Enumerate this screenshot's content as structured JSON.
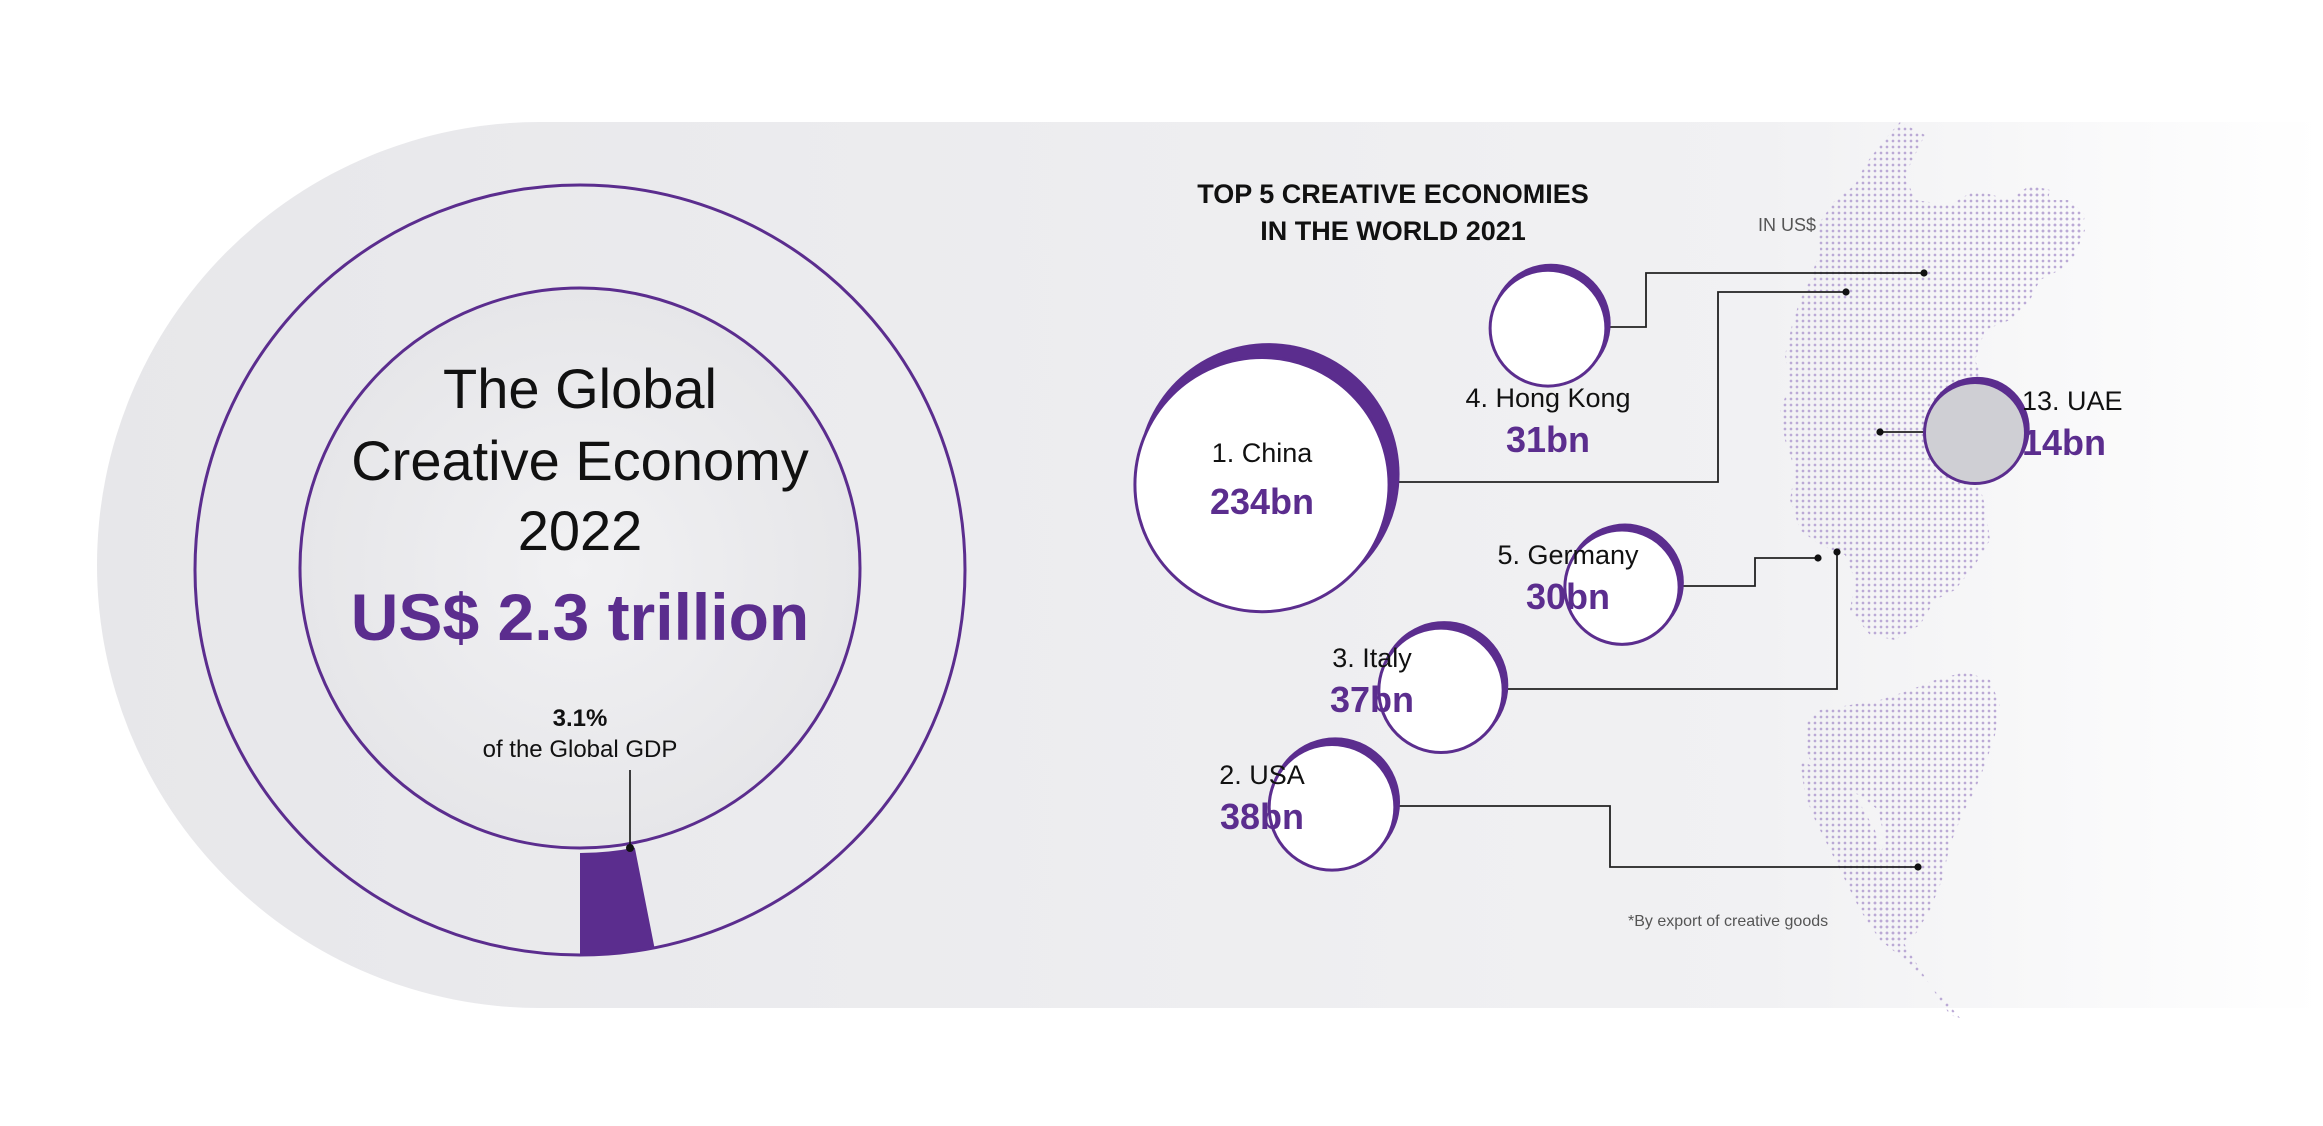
{
  "colors": {
    "accent": "#5b2d8e",
    "background_band": "#e9e9ec",
    "map_dots": "#b8a6d4",
    "uae_fill": "#cfcfd4"
  },
  "headline": {
    "line1": "The Global",
    "line2": "Creative Economy",
    "year": "2022",
    "amount": "US$ 2.3 trillion",
    "gdp_share_value": "3.1%",
    "gdp_share_label": "of the Global GDP"
  },
  "ranking": {
    "title_line1": "TOP 5 CREATIVE ECONOMIES",
    "title_line2": "IN THE WORLD 2021",
    "unit_note": "IN US$",
    "footnote": "*By export of creative goods"
  },
  "chart_data": [
    {
      "type": "pie",
      "title": "The Global Creative Economy 2022",
      "total_label": "US$ 2.3 trillion",
      "slices": [
        {
          "label": "of the Global GDP",
          "value": 3.1,
          "unit": "%"
        }
      ]
    },
    {
      "type": "scatter",
      "title": "TOP 5 CREATIVE ECONOMIES IN THE WORLD 2021",
      "unit": "IN US$",
      "points": [
        {
          "rank": "1.",
          "name": "China",
          "label": "1. China",
          "value": 234,
          "value_label": "234bn"
        },
        {
          "rank": "2.",
          "name": "USA",
          "label": "2. USA",
          "value": 38,
          "value_label": "38bn"
        },
        {
          "rank": "3.",
          "name": "Italy",
          "label": "3. Italy",
          "value": 37,
          "value_label": "37bn"
        },
        {
          "rank": "4.",
          "name": "Hong Kong",
          "label": "4. Hong Kong",
          "value": 31,
          "value_label": "31bn"
        },
        {
          "rank": "5.",
          "name": "Germany",
          "label": "5. Germany",
          "value": 30,
          "value_label": "30bn"
        },
        {
          "rank": "13.",
          "name": "UAE",
          "label": "13. UAE",
          "value": 14,
          "value_label": "14bn"
        }
      ]
    }
  ]
}
